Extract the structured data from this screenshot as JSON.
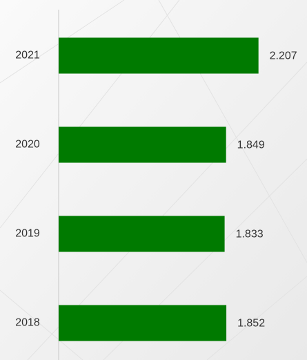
{
  "chart_data": {
    "type": "bar",
    "orientation": "horizontal",
    "categories": [
      "2021",
      "2020",
      "2019",
      "2018"
    ],
    "values": [
      2.207,
      1.849,
      1.833,
      1.852
    ],
    "color": "#007a00",
    "xlim": [
      0,
      2.4
    ]
  }
}
